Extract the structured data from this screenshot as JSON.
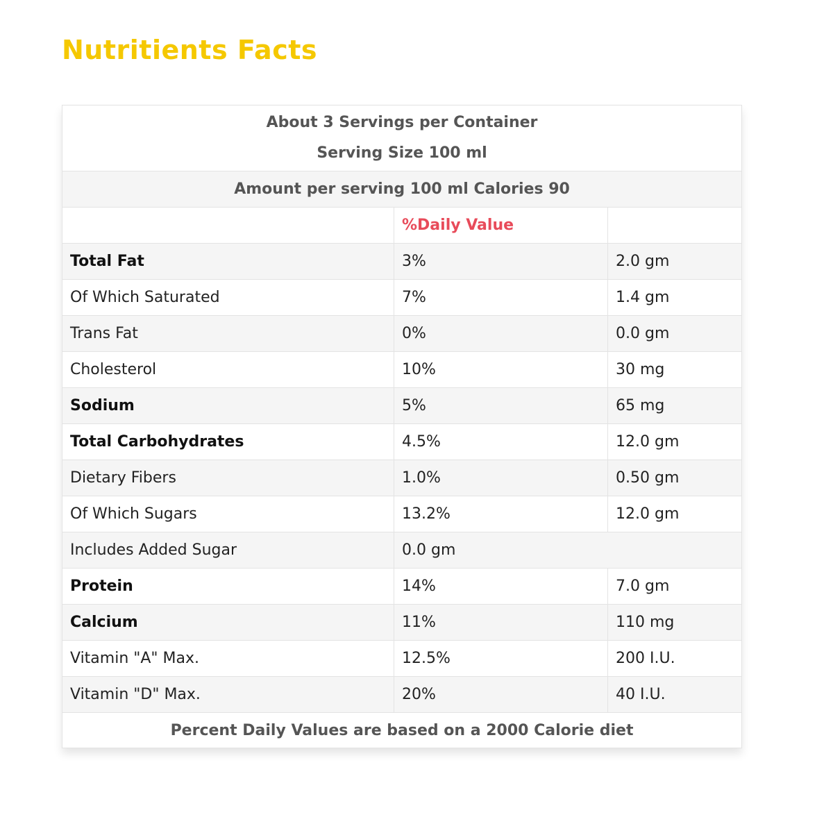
{
  "title": "Nutritients Facts",
  "header": {
    "line1": "About 3 Servings per Container",
    "line2": "Serving Size 100 ml"
  },
  "amount_line": "Amount per serving 100 ml Calories 90",
  "column_header": "%Daily Value",
  "rows": [
    {
      "name": "Total Fat",
      "bold": true,
      "dv": "3%",
      "amount": "2.0 gm"
    },
    {
      "name": "Of Which Saturated",
      "bold": false,
      "dv": "7%",
      "amount": "1.4 gm"
    },
    {
      "name": "Trans Fat",
      "bold": false,
      "dv": "0%",
      "amount": "0.0 gm"
    },
    {
      "name": "Cholesterol",
      "bold": false,
      "dv": "10%",
      "amount": "30 mg"
    },
    {
      "name": "Sodium",
      "bold": true,
      "dv": "5%",
      "amount": "65 mg"
    },
    {
      "name": "Total Carbohydrates",
      "bold": true,
      "dv": "4.5%",
      "amount": "12.0 gm"
    },
    {
      "name": "Dietary Fibers",
      "bold": false,
      "dv": "1.0%",
      "amount": "0.50 gm"
    },
    {
      "name": "Of Which Sugars",
      "bold": false,
      "dv": "13.2%",
      "amount": "12.0 gm"
    },
    {
      "name": "Includes Added Sugar",
      "bold": false,
      "dv": "0.0 gm",
      "amount": ""
    },
    {
      "name": "Protein",
      "bold": true,
      "dv": "14%",
      "amount": "7.0 gm"
    },
    {
      "name": "Calcium",
      "bold": true,
      "dv": "11%",
      "amount": "110 mg"
    },
    {
      "name": "Vitamin \"A\" Max.",
      "bold": false,
      "dv": "12.5%",
      "amount": "200 I.U."
    },
    {
      "name": "Vitamin \"D\" Max.",
      "bold": false,
      "dv": "20%",
      "amount": "40 I.U."
    }
  ],
  "footer": "Percent Daily Values are based on a 2000 Calorie diet",
  "colors": {
    "title": "#f5c800",
    "daily_value_header": "#e84b5a"
  }
}
